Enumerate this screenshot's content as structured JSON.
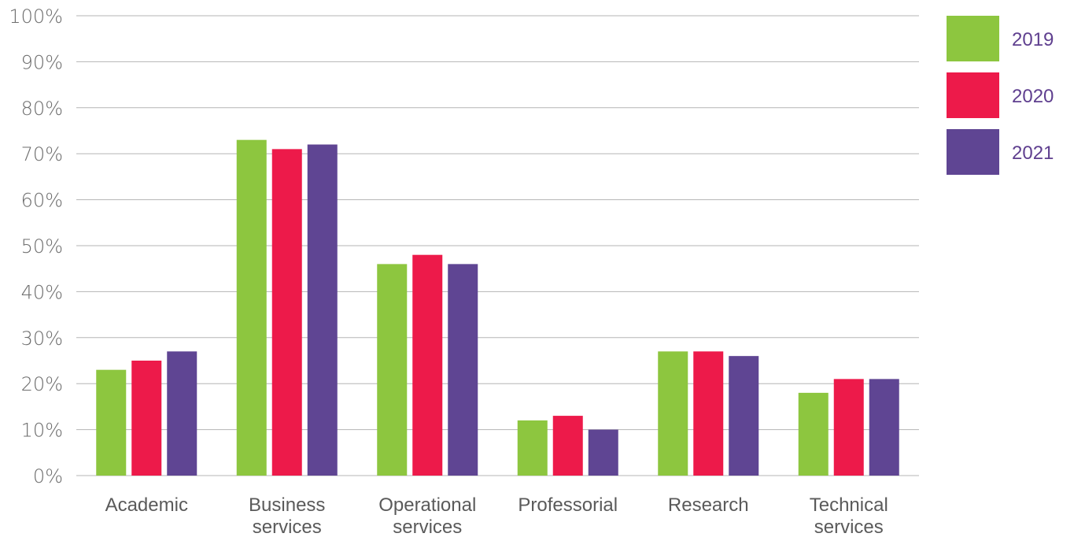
{
  "chart_data": {
    "type": "bar",
    "title": "",
    "xlabel": "",
    "ylabel": "",
    "ylim": [
      0,
      100
    ],
    "y_ticks": [
      "0%",
      "10%",
      "20%",
      "30%",
      "40%",
      "50%",
      "60%",
      "70%",
      "80%",
      "90%",
      "100%"
    ],
    "categories": [
      [
        "Academic"
      ],
      [
        "Business",
        "services"
      ],
      [
        "Operational",
        "services"
      ],
      [
        "Professorial"
      ],
      [
        "Research"
      ],
      [
        "Technical",
        "services"
      ]
    ],
    "series": [
      {
        "name": "2019",
        "color": "#8dc63f",
        "values": [
          23,
          73,
          46,
          12,
          27,
          18
        ]
      },
      {
        "name": "2020",
        "color": "#ed1a4a",
        "values": [
          25,
          71,
          48,
          13,
          27,
          21
        ]
      },
      {
        "name": "2021",
        "color": "#5f4593",
        "values": [
          27,
          72,
          46,
          10,
          26,
          21
        ]
      }
    ],
    "grid": true,
    "legend_position": "right"
  }
}
